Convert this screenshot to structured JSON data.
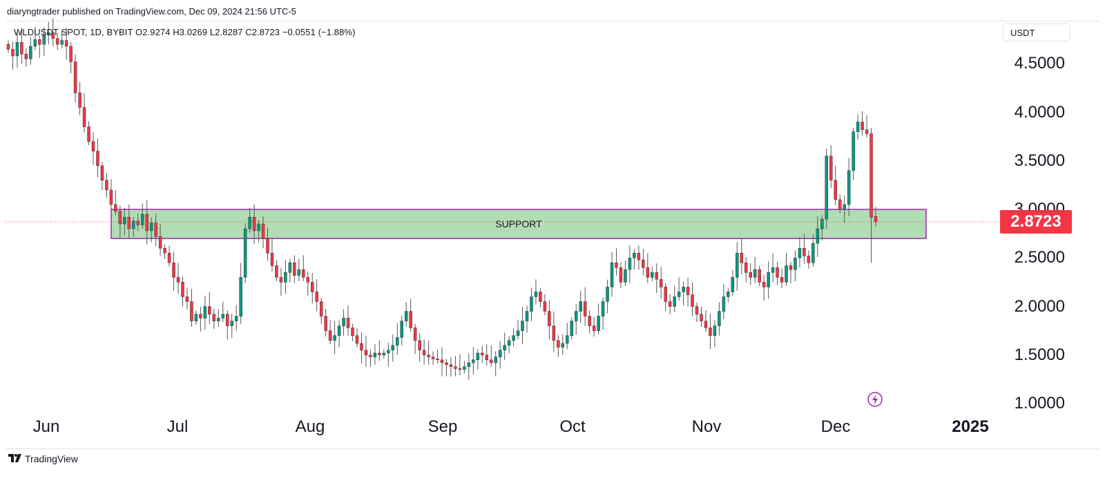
{
  "header": {
    "publisher_text": "diaryngtrader published on TradingView.com, Dec 09, 2024 21:56 UTC-5",
    "ohlc_text": "WLDUSDT SPOT, 1D, BYBIT  O2.9274  H3.0269  L2.8287  C2.8723  −0.0551 (−1.88%)"
  },
  "price_axis": {
    "currency": "USDT",
    "ticks": [
      "4.5000",
      "4.0000",
      "3.5000",
      "3.0000",
      "2.5000",
      "2.0000",
      "1.5000",
      "1.0000"
    ],
    "last_price": "2.8723"
  },
  "time_axis": {
    "ticks": [
      "Jun",
      "Jul",
      "Aug",
      "Sep",
      "Oct",
      "Nov",
      "Dec",
      "2025"
    ]
  },
  "footer": {
    "brand": "TradingView"
  },
  "colors": {
    "up": "#089981",
    "down": "#f23645",
    "zone_fill": "#a5d6a7",
    "zone_border": "#9c27b0",
    "price_line": "#f23645"
  },
  "icons": {
    "flash": "lightning-icon"
  },
  "chart_data": {
    "type": "candlestick",
    "symbol": "WLDUSDT SPOT",
    "interval": "1D",
    "exchange": "BYBIT",
    "ylim": [
      1.0,
      4.8
    ],
    "y_ticks": [
      1.0,
      1.5,
      2.0,
      2.5,
      3.0,
      3.5,
      4.0,
      4.5
    ],
    "x_months": [
      "Jun",
      "Jul",
      "Aug",
      "Sep",
      "Oct",
      "Nov",
      "Dec",
      "2025"
    ],
    "last": {
      "open": 2.9274,
      "high": 3.0269,
      "low": 2.8287,
      "close": 2.8723,
      "change": -0.0551,
      "change_pct": -1.88
    },
    "closes": [
      4.65,
      4.58,
      4.72,
      4.6,
      4.55,
      4.68,
      4.75,
      4.7,
      4.8,
      4.82,
      4.76,
      4.7,
      4.74,
      4.68,
      4.52,
      4.2,
      4.05,
      3.85,
      3.7,
      3.6,
      3.45,
      3.3,
      3.2,
      3.05,
      2.98,
      2.85,
      2.92,
      2.8,
      2.88,
      2.84,
      2.95,
      2.78,
      2.86,
      2.72,
      2.6,
      2.55,
      2.45,
      2.3,
      2.25,
      2.1,
      2.05,
      1.85,
      1.92,
      1.88,
      2.0,
      1.92,
      1.85,
      1.88,
      1.92,
      1.8,
      1.85,
      1.9,
      2.3,
      2.8,
      2.92,
      2.78,
      2.85,
      2.7,
      2.55,
      2.42,
      2.3,
      2.25,
      2.35,
      2.45,
      2.32,
      2.38,
      2.3,
      2.25,
      2.15,
      2.05,
      1.9,
      1.75,
      1.65,
      1.7,
      1.8,
      1.88,
      1.78,
      1.7,
      1.62,
      1.55,
      1.5,
      1.48,
      1.52,
      1.5,
      1.52,
      1.55,
      1.6,
      1.68,
      1.85,
      1.95,
      1.78,
      1.65,
      1.55,
      1.5,
      1.48,
      1.46,
      1.45,
      1.42,
      1.4,
      1.38,
      1.36,
      1.35,
      1.38,
      1.42,
      1.45,
      1.52,
      1.5,
      1.45,
      1.42,
      1.48,
      1.55,
      1.6,
      1.65,
      1.7,
      1.75,
      1.85,
      1.95,
      2.1,
      2.15,
      2.05,
      1.95,
      1.8,
      1.65,
      1.58,
      1.62,
      1.7,
      1.85,
      1.95,
      2.05,
      1.9,
      1.8,
      1.75,
      1.9,
      2.05,
      2.2,
      2.45,
      2.4,
      2.25,
      2.38,
      2.5,
      2.55,
      2.48,
      2.4,
      2.3,
      2.35,
      2.28,
      2.2,
      2.05,
      2.0,
      2.1,
      2.15,
      2.2,
      2.12,
      2.0,
      1.92,
      1.85,
      1.78,
      1.7,
      1.8,
      1.95,
      2.1,
      2.15,
      2.3,
      2.55,
      2.45,
      2.35,
      2.3,
      2.38,
      2.25,
      2.2,
      2.35,
      2.4,
      2.3,
      2.25,
      2.42,
      2.38,
      2.5,
      2.6,
      2.52,
      2.45,
      2.65,
      2.8,
      2.9,
      3.55,
      3.3,
      3.1,
      3.0,
      3.05,
      3.4,
      3.8,
      3.9,
      3.82,
      3.78,
      2.92,
      2.87
    ],
    "annotations": [
      {
        "type": "zone",
        "label": "SUPPORT",
        "from": 2.7,
        "to": 3.0
      }
    ]
  }
}
